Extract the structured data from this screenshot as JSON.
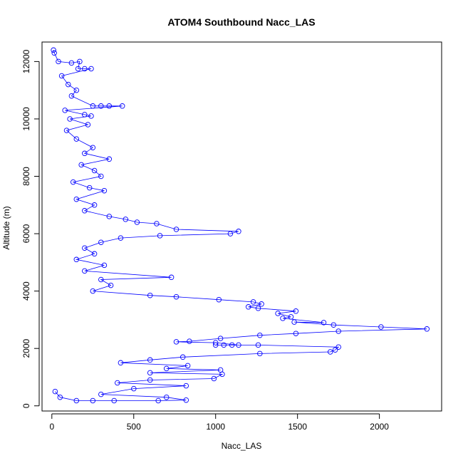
{
  "chart_data": {
    "type": "scatter",
    "title": "ATOM4 Southbound Nacc_LAS",
    "xlabel": "Nacc_LAS",
    "ylabel": "Altitude (m)",
    "xlim": [
      -60,
      2380
    ],
    "ylim": [
      -180,
      12680
    ],
    "x_ticks": [
      0,
      500,
      1000,
      1500,
      2000
    ],
    "y_ticks": [
      0,
      2000,
      4000,
      6000,
      8000,
      10000,
      12000
    ],
    "x_tick_labels": [
      "0",
      "500",
      "1000",
      "1500",
      "2000"
    ],
    "y_tick_labels": [
      "0",
      "2000",
      "4000",
      "6000",
      "8000",
      "10000",
      "12000"
    ],
    "grid": false,
    "marker": "open-circle",
    "line": "connected",
    "series": [
      {
        "color": "#0000ff",
        "points": [
          [
            10,
            12400
          ],
          [
            15,
            12300
          ],
          [
            40,
            12000
          ],
          [
            120,
            11950
          ],
          [
            170,
            12000
          ],
          [
            160,
            11750
          ],
          [
            200,
            11750
          ],
          [
            240,
            11750
          ],
          [
            60,
            11500
          ],
          [
            100,
            11200
          ],
          [
            150,
            11000
          ],
          [
            120,
            10800
          ],
          [
            250,
            10450
          ],
          [
            300,
            10450
          ],
          [
            350,
            10450
          ],
          [
            430,
            10450
          ],
          [
            80,
            10300
          ],
          [
            200,
            10150
          ],
          [
            240,
            10100
          ],
          [
            110,
            10000
          ],
          [
            220,
            9800
          ],
          [
            90,
            9600
          ],
          [
            150,
            9300
          ],
          [
            250,
            9000
          ],
          [
            200,
            8800
          ],
          [
            350,
            8600
          ],
          [
            180,
            8400
          ],
          [
            260,
            8200
          ],
          [
            300,
            8000
          ],
          [
            130,
            7800
          ],
          [
            230,
            7600
          ],
          [
            320,
            7500
          ],
          [
            150,
            7200
          ],
          [
            260,
            7000
          ],
          [
            200,
            6800
          ],
          [
            350,
            6600
          ],
          [
            450,
            6500
          ],
          [
            520,
            6400
          ],
          [
            640,
            6350
          ],
          [
            760,
            6150
          ],
          [
            1140,
            6080
          ],
          [
            1090,
            6000
          ],
          [
            660,
            5930
          ],
          [
            420,
            5850
          ],
          [
            300,
            5700
          ],
          [
            200,
            5500
          ],
          [
            260,
            5300
          ],
          [
            150,
            5100
          ],
          [
            320,
            4900
          ],
          [
            200,
            4700
          ],
          [
            730,
            4480
          ],
          [
            300,
            4400
          ],
          [
            360,
            4200
          ],
          [
            250,
            4000
          ],
          [
            600,
            3850
          ],
          [
            760,
            3800
          ],
          [
            1020,
            3700
          ],
          [
            1230,
            3620
          ],
          [
            1280,
            3550
          ],
          [
            1200,
            3450
          ],
          [
            1260,
            3400
          ],
          [
            1490,
            3300
          ],
          [
            1380,
            3220
          ],
          [
            1460,
            3100
          ],
          [
            1410,
            3050
          ],
          [
            1660,
            2900
          ],
          [
            1480,
            2920
          ],
          [
            1720,
            2820
          ],
          [
            2010,
            2750
          ],
          [
            2290,
            2680
          ],
          [
            1750,
            2600
          ],
          [
            1490,
            2520
          ],
          [
            1270,
            2460
          ],
          [
            1030,
            2350
          ],
          [
            840,
            2250
          ],
          [
            760,
            2230
          ],
          [
            1000,
            2200
          ],
          [
            1140,
            2120
          ],
          [
            1100,
            2120
          ],
          [
            1050,
            2120
          ],
          [
            1000,
            2120
          ],
          [
            1260,
            2120
          ],
          [
            1750,
            2050
          ],
          [
            1730,
            1950
          ],
          [
            1700,
            1880
          ],
          [
            1270,
            1820
          ],
          [
            800,
            1700
          ],
          [
            600,
            1600
          ],
          [
            420,
            1500
          ],
          [
            830,
            1400
          ],
          [
            700,
            1300
          ],
          [
            1030,
            1250
          ],
          [
            600,
            1150
          ],
          [
            1040,
            1100
          ],
          [
            990,
            950
          ],
          [
            600,
            900
          ],
          [
            400,
            800
          ],
          [
            820,
            700
          ],
          [
            500,
            600
          ],
          [
            300,
            400
          ],
          [
            700,
            300
          ],
          [
            820,
            200
          ],
          [
            650,
            180
          ],
          [
            250,
            180
          ],
          [
            380,
            180
          ],
          [
            150,
            180
          ],
          [
            50,
            300
          ],
          [
            20,
            500
          ]
        ]
      }
    ]
  }
}
